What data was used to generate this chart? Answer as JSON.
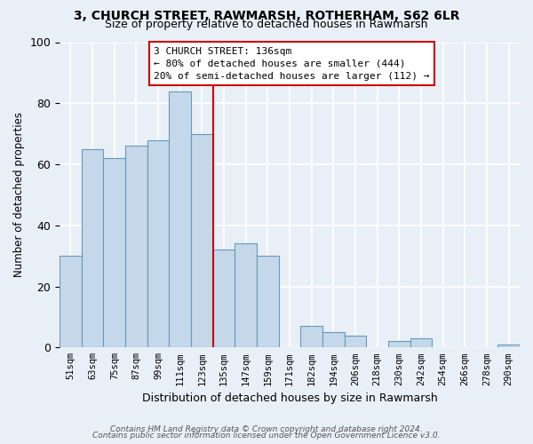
{
  "title": "3, CHURCH STREET, RAWMARSH, ROTHERHAM, S62 6LR",
  "subtitle": "Size of property relative to detached houses in Rawmarsh",
  "xlabel": "Distribution of detached houses by size in Rawmarsh",
  "ylabel": "Number of detached properties",
  "bar_labels": [
    "51sqm",
    "63sqm",
    "75sqm",
    "87sqm",
    "99sqm",
    "111sqm",
    "123sqm",
    "135sqm",
    "147sqm",
    "159sqm",
    "171sqm",
    "182sqm",
    "194sqm",
    "206sqm",
    "218sqm",
    "230sqm",
    "242sqm",
    "254sqm",
    "266sqm",
    "278sqm",
    "290sqm"
  ],
  "bar_values": [
    30,
    65,
    62,
    66,
    68,
    84,
    70,
    32,
    34,
    30,
    0,
    7,
    5,
    4,
    0,
    2,
    3,
    0,
    0,
    0,
    1
  ],
  "bar_color": "#c5d8ea",
  "bar_edgecolor": "#6699bb",
  "vline_color": "#cc0000",
  "vline_x": 7,
  "annotation_title": "3 CHURCH STREET: 136sqm",
  "annotation_line1": "← 80% of detached houses are smaller (444)",
  "annotation_line2": "20% of semi-detached houses are larger (112) →",
  "annotation_box_color": "#ffffff",
  "annotation_box_edgecolor": "#cc0000",
  "footer_line1": "Contains HM Land Registry data © Crown copyright and database right 2024.",
  "footer_line2": "Contains public sector information licensed under the Open Government Licence v3.0.",
  "ylim": [
    0,
    100
  ],
  "background_color": "#e8eff6",
  "plot_bg_color": "#e8eff6",
  "grid_color": "#ffffff",
  "yticks": [
    0,
    20,
    40,
    60,
    80,
    100
  ]
}
